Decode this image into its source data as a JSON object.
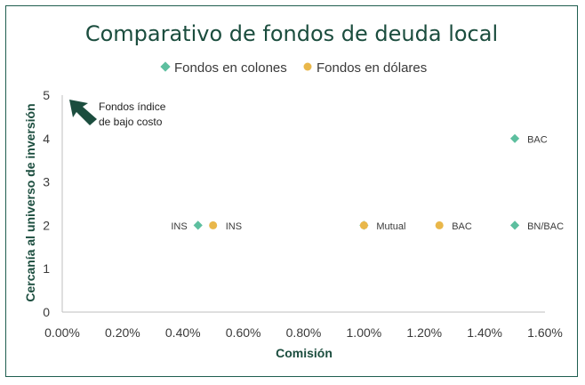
{
  "chart_data": {
    "type": "scatter",
    "title": "Comparativo  de fondos de deuda local",
    "xlabel": "Comisión",
    "ylabel": "Cercanía al universo de inversión",
    "xlim": [
      0,
      0.016
    ],
    "ylim": [
      0,
      5
    ],
    "x_ticks": [
      0,
      0.002,
      0.004,
      0.006,
      0.008,
      0.01,
      0.012,
      0.014,
      0.016
    ],
    "x_tick_labels": [
      "0.00%",
      "0.20%",
      "0.40%",
      "0.60%",
      "0.80%",
      "1.00%",
      "1.20%",
      "1.40%",
      "1.60%"
    ],
    "y_ticks": [
      0,
      1,
      2,
      3,
      4,
      5
    ],
    "y_tick_labels": [
      "0",
      "1",
      "2",
      "3",
      "4",
      "5"
    ],
    "grid": false,
    "legend": "top-center",
    "series": [
      {
        "name": "Fondos en colones",
        "marker": "diamond",
        "color": "#5dbf9f",
        "points": [
          {
            "x": 0.0045,
            "y": 2,
            "label": "INS"
          },
          {
            "x": 0.015,
            "y": 4,
            "label": "BAC"
          },
          {
            "x": 0.015,
            "y": 2,
            "label": "BN/BAC"
          },
          {
            "x": 0.01,
            "y": 2,
            "label": ""
          }
        ]
      },
      {
        "name": "Fondos en dólares",
        "marker": "circle",
        "color": "#e9b74a",
        "points": [
          {
            "x": 0.005,
            "y": 2,
            "label": "INS"
          },
          {
            "x": 0.01,
            "y": 2,
            "label": "Mutual"
          },
          {
            "x": 0.0125,
            "y": 2,
            "label": "BAC"
          }
        ]
      }
    ],
    "annotation": {
      "lines": [
        "Fondos índice",
        "de bajo costo"
      ],
      "arrow": "toward origin-top-left"
    }
  },
  "colors": {
    "frame": "#1f5e4f",
    "title": "#1b4d3e",
    "axis_title": "#1b4d3e",
    "tick_text": "#3a3a3a",
    "arrow": "#1b4d3e"
  }
}
